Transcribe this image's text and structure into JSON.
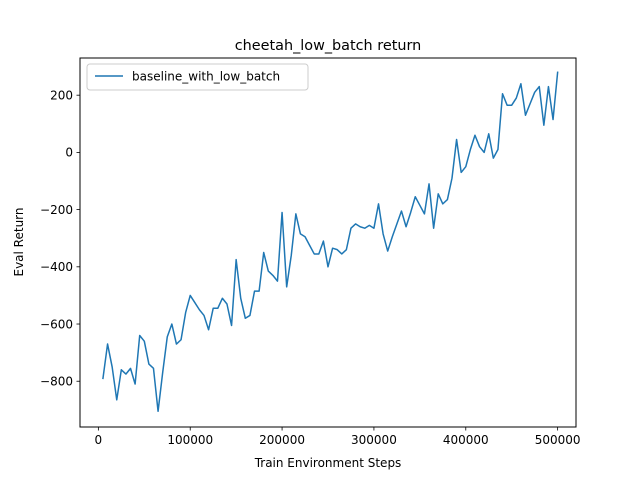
{
  "chart_data": {
    "type": "line",
    "title": "cheetah_low_batch return",
    "xlabel": "Train Environment Steps",
    "ylabel": "Eval Return",
    "xlim": [
      -20000,
      520000
    ],
    "ylim": [
      -960,
      330
    ],
    "xticks": [
      0,
      100000,
      200000,
      300000,
      400000,
      500000
    ],
    "xtick_labels": [
      "0",
      "100000",
      "200000",
      "300000",
      "400000",
      "500000"
    ],
    "yticks": [
      -800,
      -600,
      -400,
      -200,
      0,
      200
    ],
    "ytick_labels": [
      "−800",
      "−600",
      "−400",
      "−200",
      "0",
      "200"
    ],
    "grid": false,
    "legend_position": "top-left",
    "series": [
      {
        "name": "baseline_with_low_batch",
        "color": "#1f77b4",
        "x": [
          5000,
          10000,
          15000,
          20000,
          25000,
          30000,
          35000,
          40000,
          45000,
          50000,
          55000,
          60000,
          65000,
          70000,
          75000,
          80000,
          85000,
          90000,
          95000,
          100000,
          105000,
          110000,
          115000,
          120000,
          125000,
          130000,
          135000,
          140000,
          145000,
          150000,
          155000,
          160000,
          165000,
          170000,
          175000,
          180000,
          185000,
          190000,
          195000,
          200000,
          205000,
          210000,
          215000,
          220000,
          225000,
          230000,
          235000,
          240000,
          245000,
          250000,
          255000,
          260000,
          265000,
          270000,
          275000,
          280000,
          285000,
          290000,
          295000,
          300000,
          305000,
          310000,
          315000,
          320000,
          325000,
          330000,
          335000,
          340000,
          345000,
          350000,
          355000,
          360000,
          365000,
          370000,
          375000,
          380000,
          385000,
          390000,
          395000,
          400000,
          405000,
          410000,
          415000,
          420000,
          425000,
          430000,
          435000,
          440000,
          445000,
          450000,
          455000,
          460000,
          465000,
          470000,
          475000,
          480000,
          485000,
          490000,
          495000,
          500000
        ],
        "y": [
          -790,
          -670,
          -750,
          -865,
          -760,
          -775,
          -755,
          -810,
          -640,
          -660,
          -740,
          -755,
          -905,
          -770,
          -645,
          -600,
          -670,
          -655,
          -560,
          -500,
          -525,
          -550,
          -570,
          -620,
          -545,
          -545,
          -510,
          -530,
          -605,
          -375,
          -510,
          -580,
          -570,
          -485,
          -485,
          -350,
          -415,
          -430,
          -450,
          -210,
          -470,
          -360,
          -215,
          -285,
          -295,
          -325,
          -355,
          -355,
          -310,
          -400,
          -335,
          -340,
          -355,
          -340,
          -265,
          -250,
          -260,
          -265,
          -255,
          -265,
          -180,
          -285,
          -345,
          -295,
          -250,
          -205,
          -260,
          -210,
          -155,
          -185,
          -215,
          -110,
          -265,
          -145,
          -180,
          -165,
          -90,
          45,
          -70,
          -50,
          10,
          60,
          20,
          0,
          65,
          -20,
          10,
          205,
          165,
          165,
          190,
          240,
          130,
          170,
          210,
          230,
          95,
          230,
          115,
          280
        ]
      }
    ]
  }
}
